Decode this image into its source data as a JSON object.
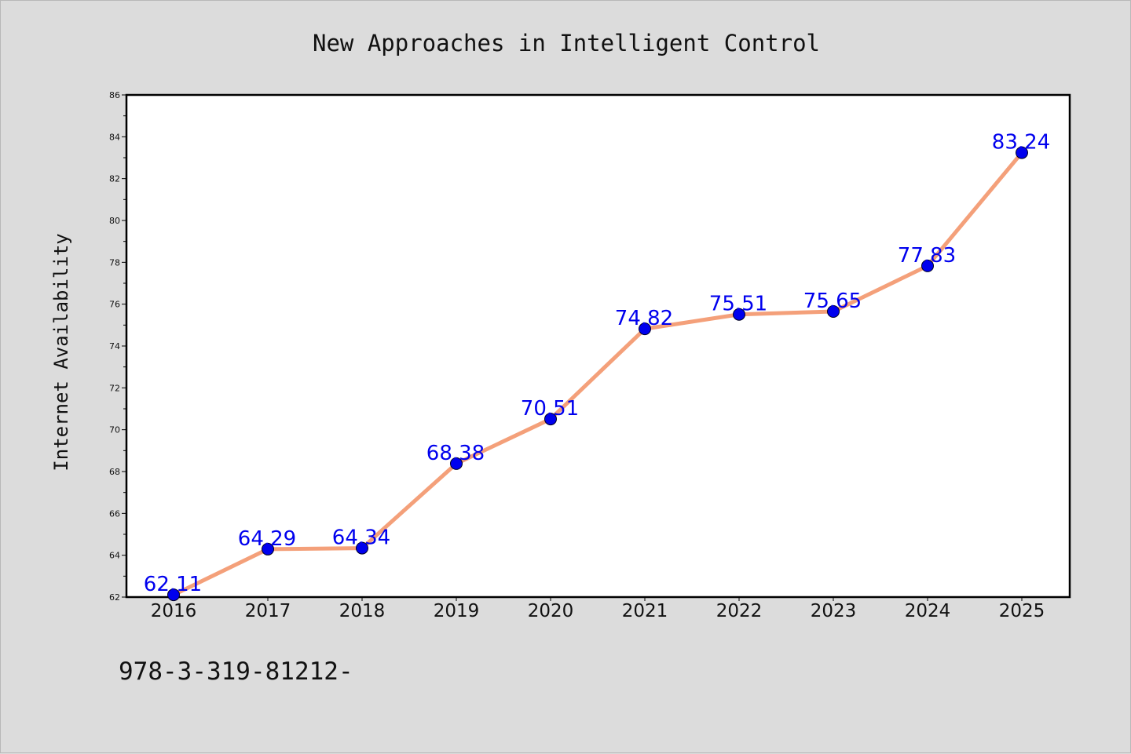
{
  "chart_data": {
    "type": "line",
    "title": "New Approaches in Intelligent Control",
    "xlabel": "",
    "ylabel": "Internet Availability",
    "x": [
      "2016",
      "2017",
      "2018",
      "2019",
      "2020",
      "2021",
      "2022",
      "2023",
      "2024",
      "2025"
    ],
    "series": [
      {
        "values": [
          62.11,
          64.29,
          64.34,
          68.38,
          70.51,
          74.82,
          75.51,
          75.65,
          77.83,
          83.24
        ],
        "labels": [
          "62.11",
          "64.29",
          "64.34",
          "68.38",
          "70.51",
          "74.82",
          "75.51",
          "75.65",
          "77.83",
          "83.24"
        ],
        "line_color": "#f4a07a",
        "marker_color": "#0000ee"
      }
    ],
    "ylim": [
      62,
      86
    ],
    "yticks": [
      "62",
      "64",
      "66",
      "68",
      "70",
      "72",
      "74",
      "76",
      "78",
      "80",
      "82",
      "84",
      "86"
    ],
    "grid": false,
    "legend": "none"
  },
  "footer": {
    "text": "978-3-319-81212-"
  },
  "colors": {
    "background": "#dcdcdc",
    "plot_background": "#ffffff",
    "axis": "#000000"
  }
}
